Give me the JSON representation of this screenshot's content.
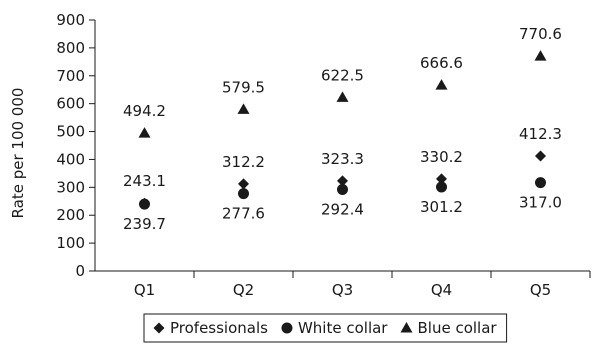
{
  "chart_data": {
    "type": "scatter",
    "title": "",
    "xlabel": "",
    "ylabel": "Rate per 100 000",
    "categories": [
      "Q1",
      "Q2",
      "Q3",
      "Q4",
      "Q5"
    ],
    "ylim": [
      0,
      900
    ],
    "yticks": [
      0,
      100,
      200,
      300,
      400,
      500,
      600,
      700,
      800,
      900
    ],
    "grid": false,
    "legend_position": "bottom",
    "series": [
      {
        "name": "Professionals",
        "marker": "diamond",
        "values": [
          243.1,
          312.2,
          323.3,
          330.2,
          412.3
        ],
        "labels": [
          "243.1",
          "312.2",
          "323.3",
          "330.2",
          "412.3"
        ],
        "label_position": "above"
      },
      {
        "name": "White collar",
        "marker": "circle",
        "values": [
          239.7,
          277.6,
          292.4,
          301.2,
          317.0
        ],
        "labels": [
          "239.7",
          "277.6",
          "292.4",
          "301.2",
          "317.0"
        ],
        "label_position": "below"
      },
      {
        "name": "Blue collar",
        "marker": "triangle",
        "values": [
          494.2,
          579.5,
          622.5,
          666.6,
          770.6
        ],
        "labels": [
          "494.2",
          "579.5",
          "622.5",
          "666.6",
          "770.6"
        ],
        "label_position": "above"
      }
    ],
    "colors": {
      "marker": "#1a1a1a",
      "axis": "#1a1a1a",
      "background": "#ffffff"
    }
  }
}
